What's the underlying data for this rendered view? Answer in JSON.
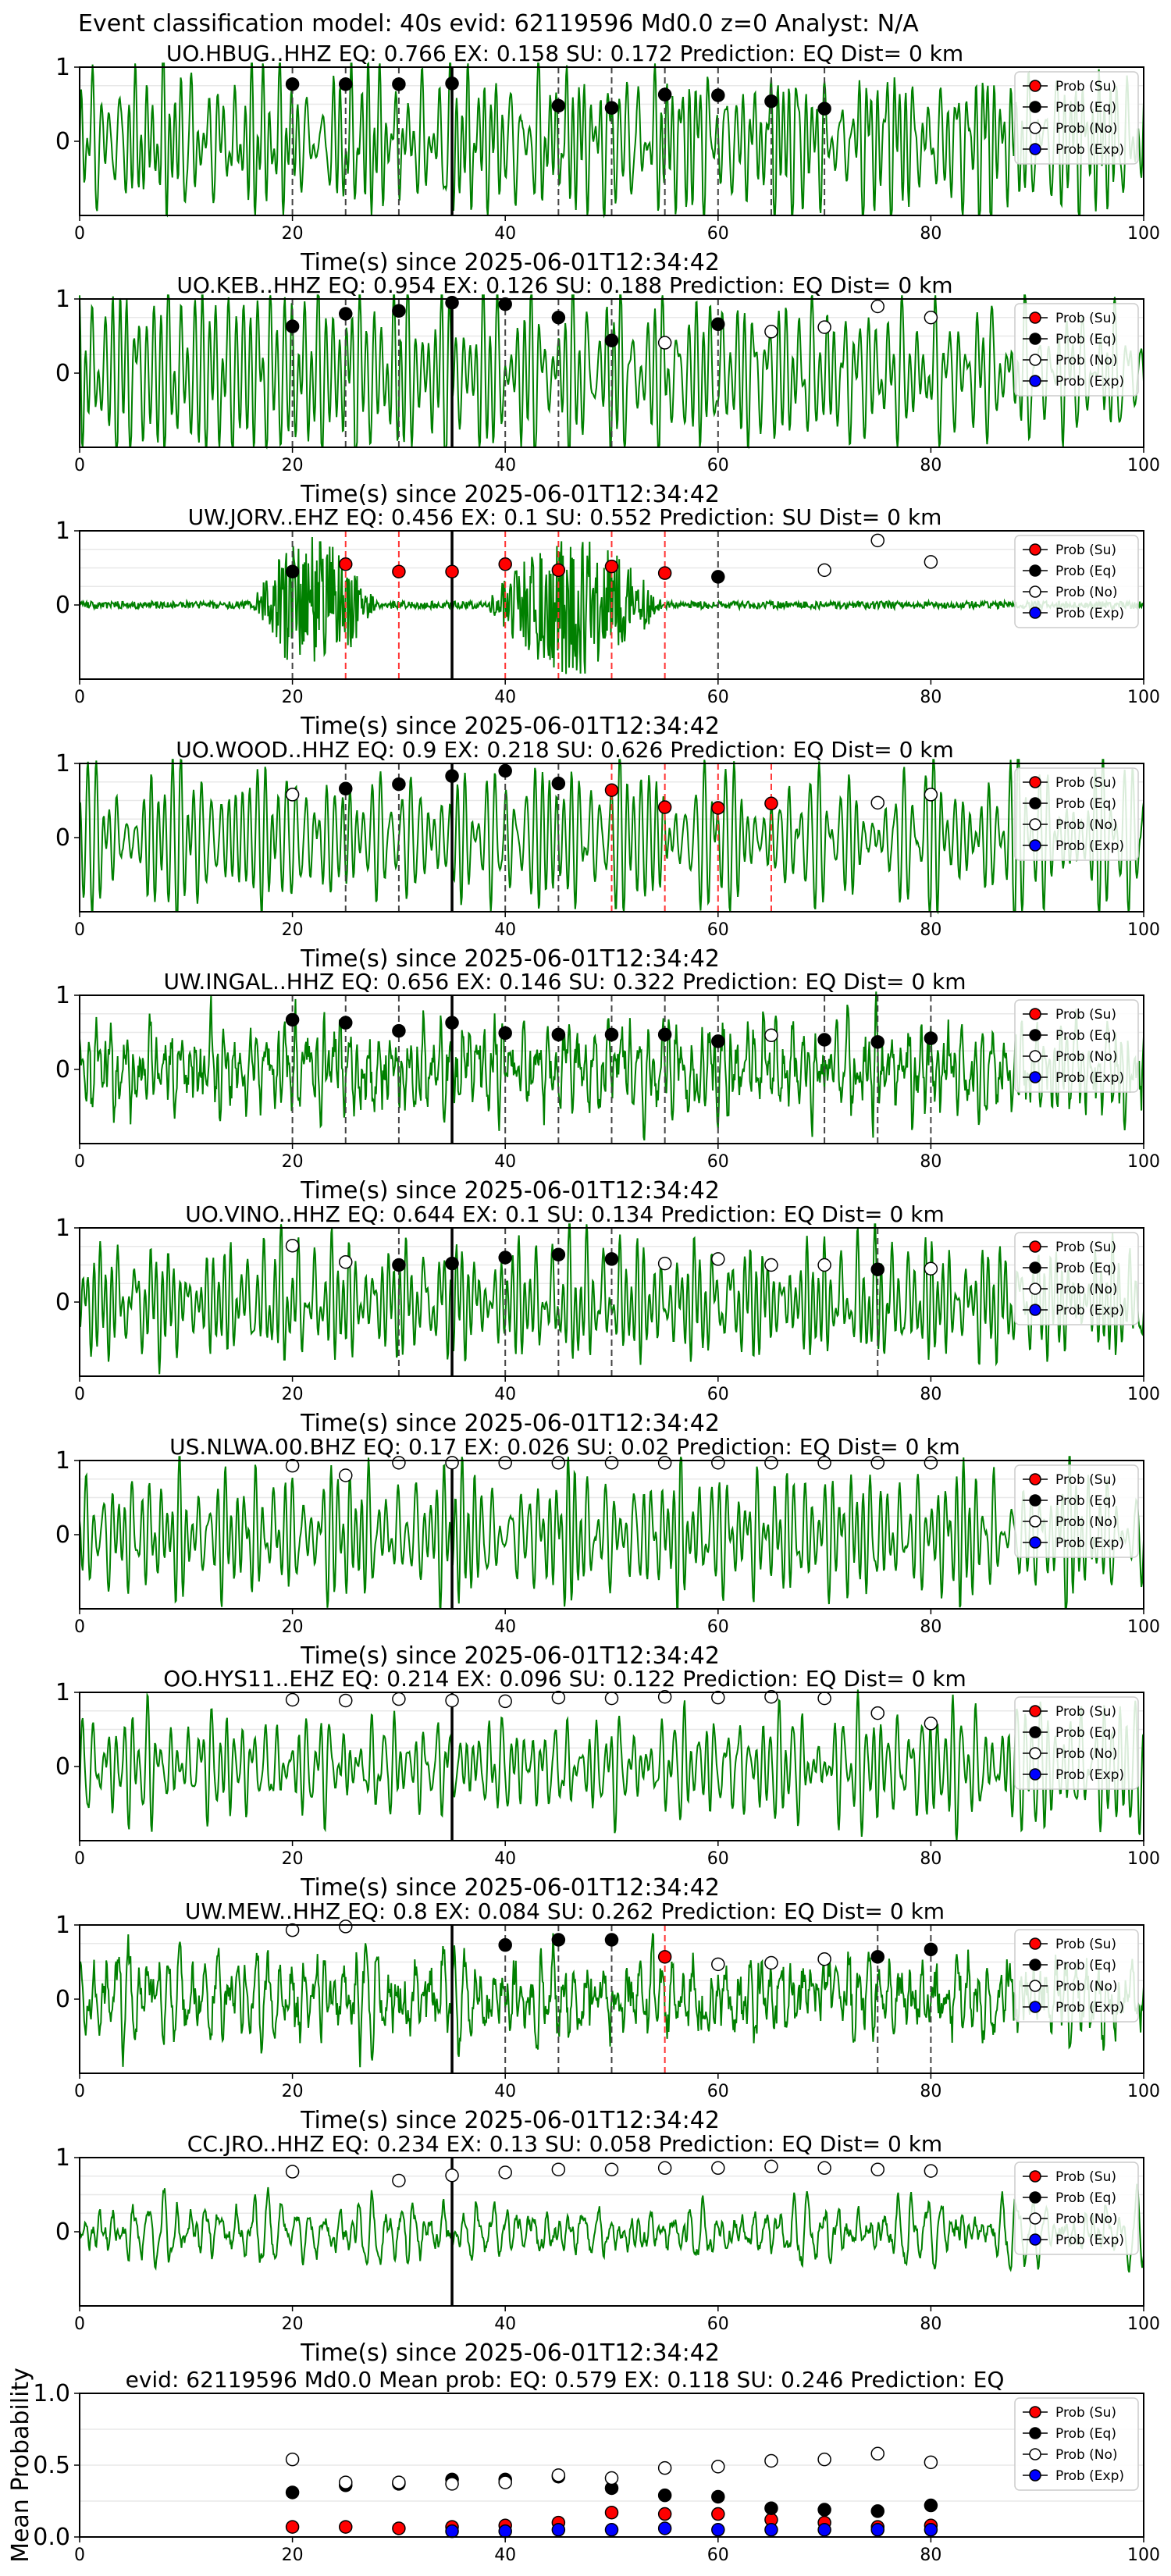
{
  "figure": {
    "suptitle": "Event classification model: 40s evid: 62119596 Md0.0 z=0 Analyst: N/A",
    "legend": [
      "Prob (Su)",
      "Prob (Eq)",
      "Prob (No)",
      "Prob (Exp)"
    ],
    "colors": {
      "waveform": "#008000",
      "su": "#ff0000",
      "eq": "#000000",
      "no": "#ffffff",
      "exp": "#0000ff"
    }
  },
  "chart_data": [
    {
      "type": "line",
      "title": "UO.HBUG..HHZ   EQ: 0.766  EX: 0.158  SU: 0.172   Prediction: EQ    Dist= 0 km",
      "xlabel": "Time(s) since 2025-06-01T12:34:42",
      "xlim": [
        0,
        100
      ],
      "ylim": [
        -1,
        1
      ],
      "xticks": [
        "0",
        "20",
        "40",
        "60",
        "80",
        "100"
      ],
      "yticks": [
        "1",
        "0"
      ],
      "pick_time": 35,
      "seed": 1,
      "wave": "smooth",
      "burst": null,
      "points": [
        {
          "x": 20,
          "y": 0.77,
          "c": "eq"
        },
        {
          "x": 25,
          "y": 0.77,
          "c": "eq"
        },
        {
          "x": 30,
          "y": 0.77,
          "c": "eq"
        },
        {
          "x": 35,
          "y": 0.78,
          "c": "eq"
        },
        {
          "x": 45,
          "y": 0.48,
          "c": "eq"
        },
        {
          "x": 50,
          "y": 0.45,
          "c": "eq"
        },
        {
          "x": 55,
          "y": 0.63,
          "c": "eq"
        },
        {
          "x": 60,
          "y": 0.62,
          "c": "eq"
        },
        {
          "x": 65,
          "y": 0.54,
          "c": "eq"
        },
        {
          "x": 70,
          "y": 0.44,
          "c": "eq"
        }
      ]
    },
    {
      "type": "line",
      "title": "UO.KEB..HHZ   EQ: 0.954  EX: 0.126  SU: 0.188   Prediction: EQ    Dist= 0 km",
      "xlabel": "Time(s) since 2025-06-01T12:34:42",
      "xlim": [
        0,
        100
      ],
      "ylim": [
        -1,
        1
      ],
      "xticks": [
        "0",
        "20",
        "40",
        "60",
        "80",
        "100"
      ],
      "yticks": [
        "1",
        "0"
      ],
      "pick_time": 35,
      "seed": 2,
      "wave": "smooth",
      "burst": null,
      "points": [
        {
          "x": 20,
          "y": 0.63,
          "c": "eq"
        },
        {
          "x": 25,
          "y": 0.8,
          "c": "eq"
        },
        {
          "x": 30,
          "y": 0.84,
          "c": "eq"
        },
        {
          "x": 35,
          "y": 0.95,
          "c": "eq"
        },
        {
          "x": 40,
          "y": 0.93,
          "c": "eq"
        },
        {
          "x": 45,
          "y": 0.75,
          "c": "eq"
        },
        {
          "x": 50,
          "y": 0.44,
          "c": "eq"
        },
        {
          "x": 55,
          "y": 0.41,
          "c": "no"
        },
        {
          "x": 60,
          "y": 0.66,
          "c": "eq"
        },
        {
          "x": 65,
          "y": 0.56,
          "c": "no"
        },
        {
          "x": 70,
          "y": 0.62,
          "c": "no"
        },
        {
          "x": 75,
          "y": 0.9,
          "c": "no"
        },
        {
          "x": 80,
          "y": 0.75,
          "c": "no"
        }
      ]
    },
    {
      "type": "line",
      "title": "UW.JORV..EHZ   EQ: 0.456  EX: 0.1  SU: 0.552   Prediction: SU    Dist= 0 km",
      "xlabel": "Time(s) since 2025-06-01T12:34:42",
      "xlim": [
        0,
        100
      ],
      "ylim": [
        -1,
        1
      ],
      "xticks": [
        "0",
        "20",
        "40",
        "60",
        "80",
        "100"
      ],
      "yticks": [
        "1",
        "0"
      ],
      "pick_time": 35,
      "seed": 3,
      "wave": "noisy",
      "burst": [
        [
          16,
          28
        ],
        [
          38,
          55
        ]
      ],
      "points": [
        {
          "x": 20,
          "y": 0.45,
          "c": "eq"
        },
        {
          "x": 25,
          "y": 0.55,
          "c": "su"
        },
        {
          "x": 30,
          "y": 0.45,
          "c": "su"
        },
        {
          "x": 35,
          "y": 0.45,
          "c": "su"
        },
        {
          "x": 40,
          "y": 0.55,
          "c": "su"
        },
        {
          "x": 45,
          "y": 0.47,
          "c": "su"
        },
        {
          "x": 50,
          "y": 0.52,
          "c": "su"
        },
        {
          "x": 55,
          "y": 0.43,
          "c": "su"
        },
        {
          "x": 60,
          "y": 0.38,
          "c": "eq"
        },
        {
          "x": 70,
          "y": 0.47,
          "c": "no"
        },
        {
          "x": 75,
          "y": 0.87,
          "c": "no"
        },
        {
          "x": 80,
          "y": 0.58,
          "c": "no"
        }
      ]
    },
    {
      "type": "line",
      "title": "UO.WOOD..HHZ   EQ: 0.9  EX: 0.218  SU: 0.626   Prediction: EQ    Dist= 0 km",
      "xlabel": "Time(s) since 2025-06-01T12:34:42",
      "xlim": [
        0,
        100
      ],
      "ylim": [
        -1,
        1
      ],
      "xticks": [
        "0",
        "20",
        "40",
        "60",
        "80",
        "100"
      ],
      "yticks": [
        "1",
        "0"
      ],
      "pick_time": 35,
      "seed": 4,
      "wave": "smooth",
      "burst": null,
      "points": [
        {
          "x": 20,
          "y": 0.58,
          "c": "no"
        },
        {
          "x": 25,
          "y": 0.66,
          "c": "eq"
        },
        {
          "x": 30,
          "y": 0.72,
          "c": "eq"
        },
        {
          "x": 35,
          "y": 0.83,
          "c": "eq"
        },
        {
          "x": 40,
          "y": 0.9,
          "c": "eq"
        },
        {
          "x": 45,
          "y": 0.73,
          "c": "eq"
        },
        {
          "x": 50,
          "y": 0.64,
          "c": "su"
        },
        {
          "x": 55,
          "y": 0.41,
          "c": "su"
        },
        {
          "x": 60,
          "y": 0.4,
          "c": "su"
        },
        {
          "x": 65,
          "y": 0.46,
          "c": "su"
        },
        {
          "x": 75,
          "y": 0.47,
          "c": "no"
        },
        {
          "x": 80,
          "y": 0.58,
          "c": "no"
        }
      ]
    },
    {
      "type": "line",
      "title": "UW.INGAL..HHZ   EQ: 0.656  EX: 0.146  SU: 0.322   Prediction: EQ    Dist= 0 km",
      "xlabel": "Time(s) since 2025-06-01T12:34:42",
      "xlim": [
        0,
        100
      ],
      "ylim": [
        -1,
        1
      ],
      "xticks": [
        "0",
        "20",
        "40",
        "60",
        "80",
        "100"
      ],
      "yticks": [
        "1",
        "0"
      ],
      "pick_time": 35,
      "seed": 5,
      "wave": "rough",
      "burst": null,
      "points": [
        {
          "x": 20,
          "y": 0.67,
          "c": "eq"
        },
        {
          "x": 25,
          "y": 0.63,
          "c": "eq"
        },
        {
          "x": 30,
          "y": 0.52,
          "c": "eq"
        },
        {
          "x": 35,
          "y": 0.63,
          "c": "eq"
        },
        {
          "x": 40,
          "y": 0.49,
          "c": "eq"
        },
        {
          "x": 45,
          "y": 0.47,
          "c": "eq"
        },
        {
          "x": 50,
          "y": 0.47,
          "c": "eq"
        },
        {
          "x": 55,
          "y": 0.47,
          "c": "eq"
        },
        {
          "x": 60,
          "y": 0.38,
          "c": "eq"
        },
        {
          "x": 65,
          "y": 0.46,
          "c": "no"
        },
        {
          "x": 70,
          "y": 0.4,
          "c": "eq"
        },
        {
          "x": 75,
          "y": 0.37,
          "c": "eq"
        },
        {
          "x": 80,
          "y": 0.42,
          "c": "eq"
        }
      ]
    },
    {
      "type": "line",
      "title": "UO.VINO..HHZ   EQ: 0.644  EX: 0.1  SU: 0.134   Prediction: EQ    Dist= 0 km",
      "xlabel": "Time(s) since 2025-06-01T12:34:42",
      "xlim": [
        0,
        100
      ],
      "ylim": [
        -1,
        1
      ],
      "xticks": [
        "0",
        "20",
        "40",
        "60",
        "80",
        "100"
      ],
      "yticks": [
        "1",
        "0"
      ],
      "pick_time": 35,
      "seed": 6,
      "wave": "smooth",
      "burst": null,
      "points": [
        {
          "x": 20,
          "y": 0.76,
          "c": "no"
        },
        {
          "x": 25,
          "y": 0.54,
          "c": "no"
        },
        {
          "x": 30,
          "y": 0.5,
          "c": "eq"
        },
        {
          "x": 35,
          "y": 0.52,
          "c": "eq"
        },
        {
          "x": 40,
          "y": 0.6,
          "c": "eq"
        },
        {
          "x": 45,
          "y": 0.64,
          "c": "eq"
        },
        {
          "x": 50,
          "y": 0.58,
          "c": "eq"
        },
        {
          "x": 55,
          "y": 0.52,
          "c": "no"
        },
        {
          "x": 60,
          "y": 0.58,
          "c": "no"
        },
        {
          "x": 65,
          "y": 0.5,
          "c": "no"
        },
        {
          "x": 70,
          "y": 0.5,
          "c": "no"
        },
        {
          "x": 75,
          "y": 0.44,
          "c": "eq"
        },
        {
          "x": 80,
          "y": 0.45,
          "c": "no"
        }
      ]
    },
    {
      "type": "line",
      "title": "US.NLWA.00.BHZ   EQ: 0.17  EX: 0.026  SU: 0.02   Prediction: EQ    Dist= 0 km",
      "xlabel": "Time(s) since 2025-06-01T12:34:42",
      "xlim": [
        0,
        100
      ],
      "ylim": [
        -1,
        1
      ],
      "xticks": [
        "0",
        "20",
        "40",
        "60",
        "80",
        "100"
      ],
      "yticks": [
        "1",
        "0"
      ],
      "pick_time": 35,
      "seed": 7,
      "wave": "smooth",
      "burst": null,
      "points": [
        {
          "x": 20,
          "y": 0.93,
          "c": "no"
        },
        {
          "x": 25,
          "y": 0.8,
          "c": "no"
        },
        {
          "x": 30,
          "y": 0.97,
          "c": "no"
        },
        {
          "x": 35,
          "y": 0.97,
          "c": "no"
        },
        {
          "x": 40,
          "y": 0.97,
          "c": "no"
        },
        {
          "x": 45,
          "y": 0.97,
          "c": "no"
        },
        {
          "x": 50,
          "y": 0.97,
          "c": "no"
        },
        {
          "x": 55,
          "y": 0.97,
          "c": "no"
        },
        {
          "x": 60,
          "y": 0.97,
          "c": "no"
        },
        {
          "x": 65,
          "y": 0.97,
          "c": "no"
        },
        {
          "x": 70,
          "y": 0.97,
          "c": "no"
        },
        {
          "x": 75,
          "y": 0.97,
          "c": "no"
        },
        {
          "x": 80,
          "y": 0.97,
          "c": "no"
        }
      ]
    },
    {
      "type": "line",
      "title": "OO.HYS11..EHZ   EQ: 0.214  EX: 0.096  SU: 0.122   Prediction: EQ    Dist= 0 km",
      "xlabel": "Time(s) since 2025-06-01T12:34:42",
      "xlim": [
        0,
        100
      ],
      "ylim": [
        -1,
        1
      ],
      "xticks": [
        "0",
        "20",
        "40",
        "60",
        "80",
        "100"
      ],
      "yticks": [
        "1",
        "0"
      ],
      "pick_time": 35,
      "seed": 8,
      "wave": "smooth",
      "burst": null,
      "points": [
        {
          "x": 20,
          "y": 0.9,
          "c": "no"
        },
        {
          "x": 25,
          "y": 0.89,
          "c": "no"
        },
        {
          "x": 30,
          "y": 0.91,
          "c": "no"
        },
        {
          "x": 35,
          "y": 0.89,
          "c": "no"
        },
        {
          "x": 40,
          "y": 0.88,
          "c": "no"
        },
        {
          "x": 45,
          "y": 0.93,
          "c": "no"
        },
        {
          "x": 50,
          "y": 0.92,
          "c": "no"
        },
        {
          "x": 55,
          "y": 0.94,
          "c": "no"
        },
        {
          "x": 60,
          "y": 0.93,
          "c": "no"
        },
        {
          "x": 65,
          "y": 0.94,
          "c": "no"
        },
        {
          "x": 70,
          "y": 0.92,
          "c": "no"
        },
        {
          "x": 75,
          "y": 0.72,
          "c": "no"
        },
        {
          "x": 80,
          "y": 0.58,
          "c": "no"
        }
      ]
    },
    {
      "type": "line",
      "title": "UW.MEW..HHZ   EQ: 0.8  EX: 0.084  SU: 0.262   Prediction: EQ    Dist= 0 km",
      "xlabel": "Time(s) since 2025-06-01T12:34:42",
      "xlim": [
        0,
        100
      ],
      "ylim": [
        -1,
        1
      ],
      "xticks": [
        "0",
        "20",
        "40",
        "60",
        "80",
        "100"
      ],
      "yticks": [
        "1",
        "0"
      ],
      "pick_time": 35,
      "seed": 9,
      "wave": "rough",
      "burst": null,
      "points": [
        {
          "x": 20,
          "y": 0.93,
          "c": "no"
        },
        {
          "x": 25,
          "y": 0.98,
          "c": "no"
        },
        {
          "x": 40,
          "y": 0.73,
          "c": "eq"
        },
        {
          "x": 45,
          "y": 0.8,
          "c": "eq"
        },
        {
          "x": 50,
          "y": 0.8,
          "c": "eq"
        },
        {
          "x": 55,
          "y": 0.57,
          "c": "su"
        },
        {
          "x": 60,
          "y": 0.47,
          "c": "no"
        },
        {
          "x": 65,
          "y": 0.49,
          "c": "no"
        },
        {
          "x": 70,
          "y": 0.54,
          "c": "no"
        },
        {
          "x": 75,
          "y": 0.57,
          "c": "eq"
        },
        {
          "x": 80,
          "y": 0.67,
          "c": "eq"
        }
      ]
    },
    {
      "type": "line",
      "title": "CC.JRO..HHZ   EQ: 0.234  EX: 0.13  SU: 0.058   Prediction: EQ    Dist= 0 km",
      "xlabel": "Time(s) since 2025-06-01T12:34:42",
      "xlim": [
        0,
        100
      ],
      "ylim": [
        -1,
        1
      ],
      "xticks": [
        "0",
        "20",
        "40",
        "60",
        "80",
        "100"
      ],
      "yticks": [
        "1",
        "0"
      ],
      "pick_time": 35,
      "seed": 10,
      "wave": "quiet",
      "burst": null,
      "points": [
        {
          "x": 20,
          "y": 0.81,
          "c": "no"
        },
        {
          "x": 30,
          "y": 0.69,
          "c": "no"
        },
        {
          "x": 35,
          "y": 0.76,
          "c": "no"
        },
        {
          "x": 40,
          "y": 0.8,
          "c": "no"
        },
        {
          "x": 45,
          "y": 0.84,
          "c": "no"
        },
        {
          "x": 50,
          "y": 0.84,
          "c": "no"
        },
        {
          "x": 55,
          "y": 0.86,
          "c": "no"
        },
        {
          "x": 60,
          "y": 0.86,
          "c": "no"
        },
        {
          "x": 65,
          "y": 0.88,
          "c": "no"
        },
        {
          "x": 70,
          "y": 0.86,
          "c": "no"
        },
        {
          "x": 75,
          "y": 0.84,
          "c": "no"
        },
        {
          "x": 80,
          "y": 0.82,
          "c": "no"
        }
      ]
    },
    {
      "type": "scatter",
      "title": "evid: 62119596  Md0.0   Mean prob:   EQ: 0.579  EX: 0.118  SU: 0.246   Prediction: EQ",
      "xlabel": "",
      "ylabel": "Mean Probability",
      "xlim": [
        0,
        100
      ],
      "ylim": [
        0,
        1
      ],
      "xticks": [
        "0",
        "20",
        "40",
        "60",
        "80",
        "100"
      ],
      "yticks": [
        "1.0",
        "0.5",
        "0.0"
      ],
      "series": [
        {
          "name": "Prob (Su)",
          "c": "su",
          "x": [
            20,
            25,
            30,
            35,
            40,
            45,
            50,
            55,
            60,
            65,
            70,
            75,
            80
          ],
          "y": [
            0.07,
            0.07,
            0.06,
            0.07,
            0.08,
            0.1,
            0.17,
            0.16,
            0.16,
            0.12,
            0.1,
            0.07,
            0.08
          ]
        },
        {
          "name": "Prob (Eq)",
          "c": "eq",
          "x": [
            20,
            25,
            30,
            35,
            40,
            45,
            50,
            55,
            60,
            65,
            70,
            75,
            80
          ],
          "y": [
            0.31,
            0.36,
            0.37,
            0.4,
            0.4,
            0.42,
            0.34,
            0.29,
            0.28,
            0.2,
            0.19,
            0.18,
            0.22
          ]
        },
        {
          "name": "Prob (No)",
          "c": "no",
          "x": [
            20,
            25,
            30,
            35,
            40,
            45,
            50,
            55,
            60,
            65,
            70,
            75,
            80
          ],
          "y": [
            0.54,
            0.38,
            0.38,
            0.37,
            0.38,
            0.43,
            0.41,
            0.48,
            0.49,
            0.53,
            0.54,
            0.58,
            0.52
          ]
        },
        {
          "name": "Prob (Exp)",
          "c": "exp",
          "x": [
            35,
            40,
            45,
            50,
            55,
            60,
            65,
            70,
            75,
            80
          ],
          "y": [
            0.04,
            0.04,
            0.05,
            0.05,
            0.06,
            0.05,
            0.05,
            0.05,
            0.05,
            0.05
          ]
        }
      ]
    }
  ]
}
